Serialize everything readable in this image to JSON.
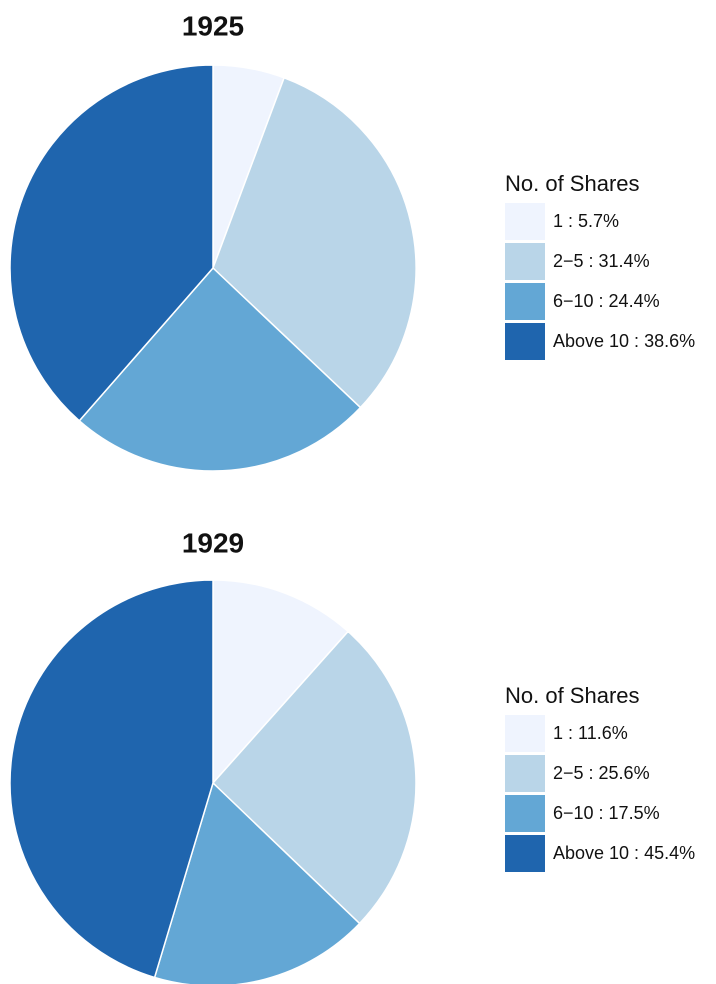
{
  "chart_data": [
    {
      "type": "pie",
      "title": "1925",
      "legend_title": "No. of Shares",
      "categories": [
        "1",
        "2−5",
        "6−10",
        "Above 10"
      ],
      "values": [
        5.7,
        31.4,
        24.4,
        38.6
      ],
      "value_labels": [
        "1 : 5.7%",
        "2−5 : 31.4%",
        "6−10 : 24.4%",
        "Above 10 : 38.6%"
      ],
      "colors": [
        "#eff4fe",
        "#b9d5e8",
        "#63a7d5",
        "#1f65ae"
      ]
    },
    {
      "type": "pie",
      "title": "1929",
      "legend_title": "No. of Shares",
      "categories": [
        "1",
        "2−5",
        "6−10",
        "Above 10"
      ],
      "values": [
        11.6,
        25.6,
        17.5,
        45.4
      ],
      "value_labels": [
        "1 : 11.6%",
        "2−5 : 25.6%",
        "6−10 : 17.5%",
        "Above 10 : 45.4%"
      ],
      "colors": [
        "#eff4fe",
        "#b9d5e8",
        "#63a7d5",
        "#1f65ae"
      ]
    }
  ]
}
